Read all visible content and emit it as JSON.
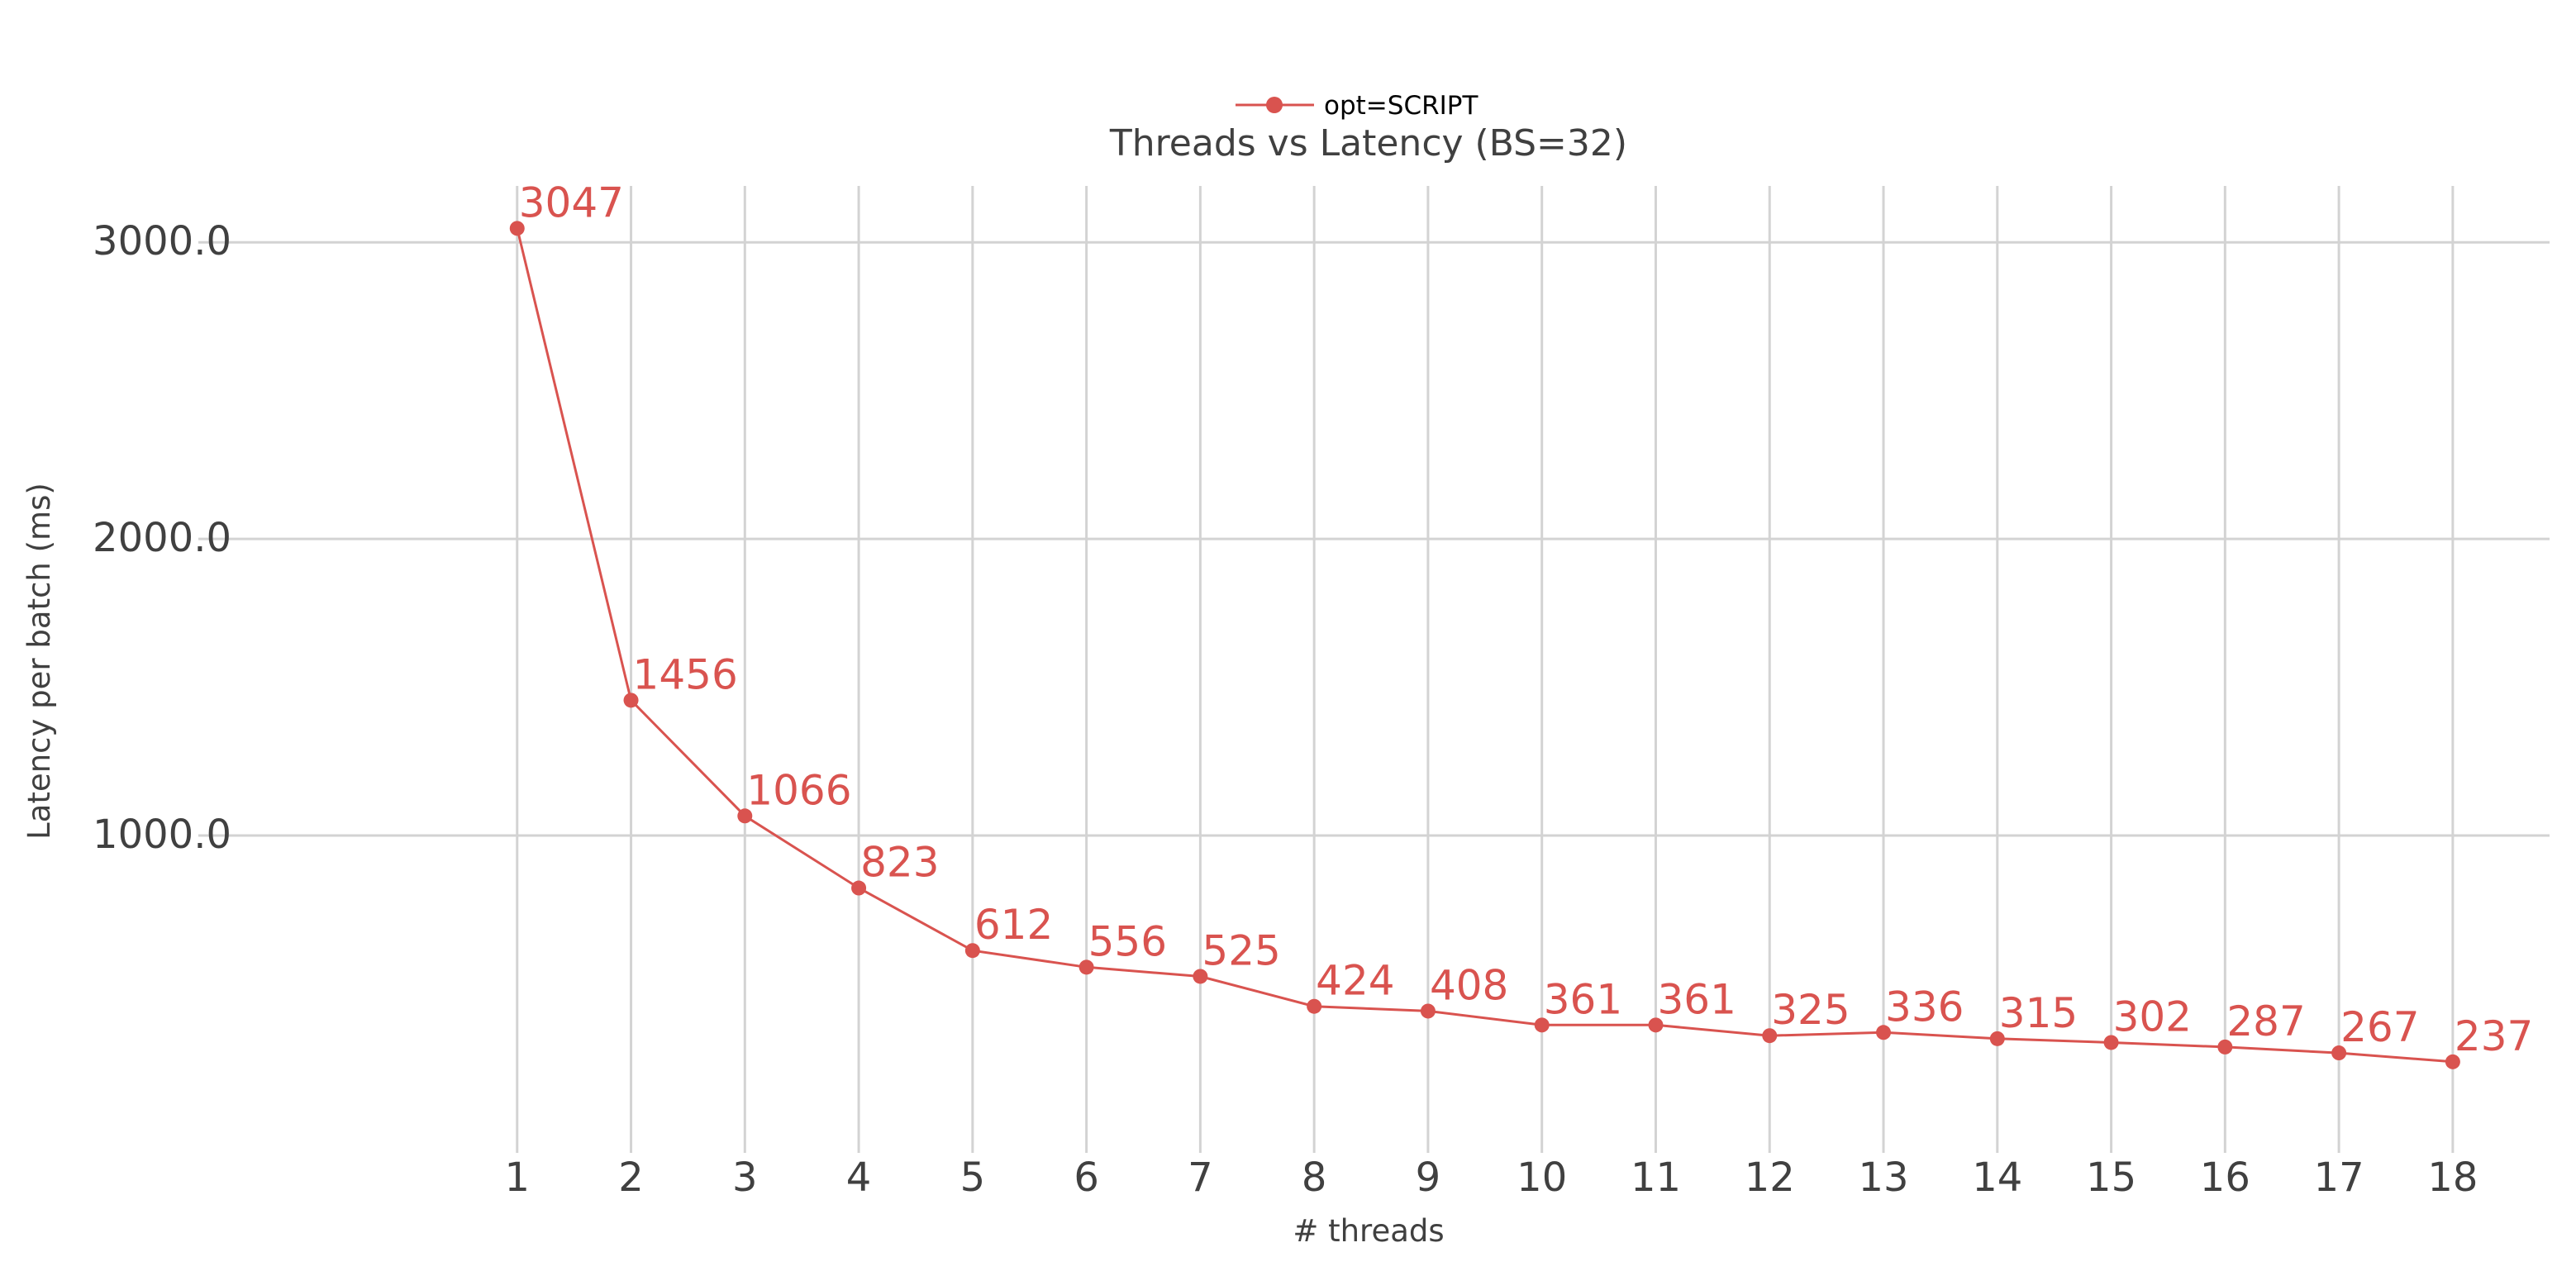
{
  "chart_data": {
    "type": "line",
    "title": "Threads vs Latency (BS=32)",
    "xlabel": "# threads",
    "ylabel": "Latency per batch (ms)",
    "x": [
      1,
      2,
      3,
      4,
      5,
      6,
      7,
      8,
      9,
      10,
      11,
      12,
      13,
      14,
      15,
      16,
      17,
      18
    ],
    "series": [
      {
        "name": "opt=SCRIPT",
        "values": [
          3047,
          1456,
          1066,
          823,
          612,
          556,
          525,
          424,
          408,
          361,
          361,
          325,
          336,
          315,
          302,
          287,
          267,
          237
        ],
        "labels": [
          "3047",
          "1456",
          "1066",
          "823",
          "612",
          "556",
          "525",
          "424",
          "408",
          "361",
          "361",
          "325",
          "336",
          "315",
          "302",
          "287",
          "267",
          "237"
        ],
        "color": "#d9534f"
      }
    ],
    "x_ticks": [
      "1",
      "2",
      "3",
      "4",
      "5",
      "6",
      "7",
      "8",
      "9",
      "10",
      "11",
      "12",
      "13",
      "14",
      "15",
      "16",
      "17",
      "18"
    ],
    "y_ticks": [
      {
        "value": 1000,
        "label": "1000.0"
      },
      {
        "value": 2000,
        "label": "2000.0"
      },
      {
        "value": 3000,
        "label": "3000.0"
      }
    ],
    "ylim": [
      -70,
      3190
    ],
    "xlim": [
      -1.8,
      18.85
    ],
    "grid": true,
    "legend_position": "top-center",
    "colors": {
      "text": "#404040",
      "grid": "#d3d3d3",
      "series": "#d9534f"
    }
  }
}
